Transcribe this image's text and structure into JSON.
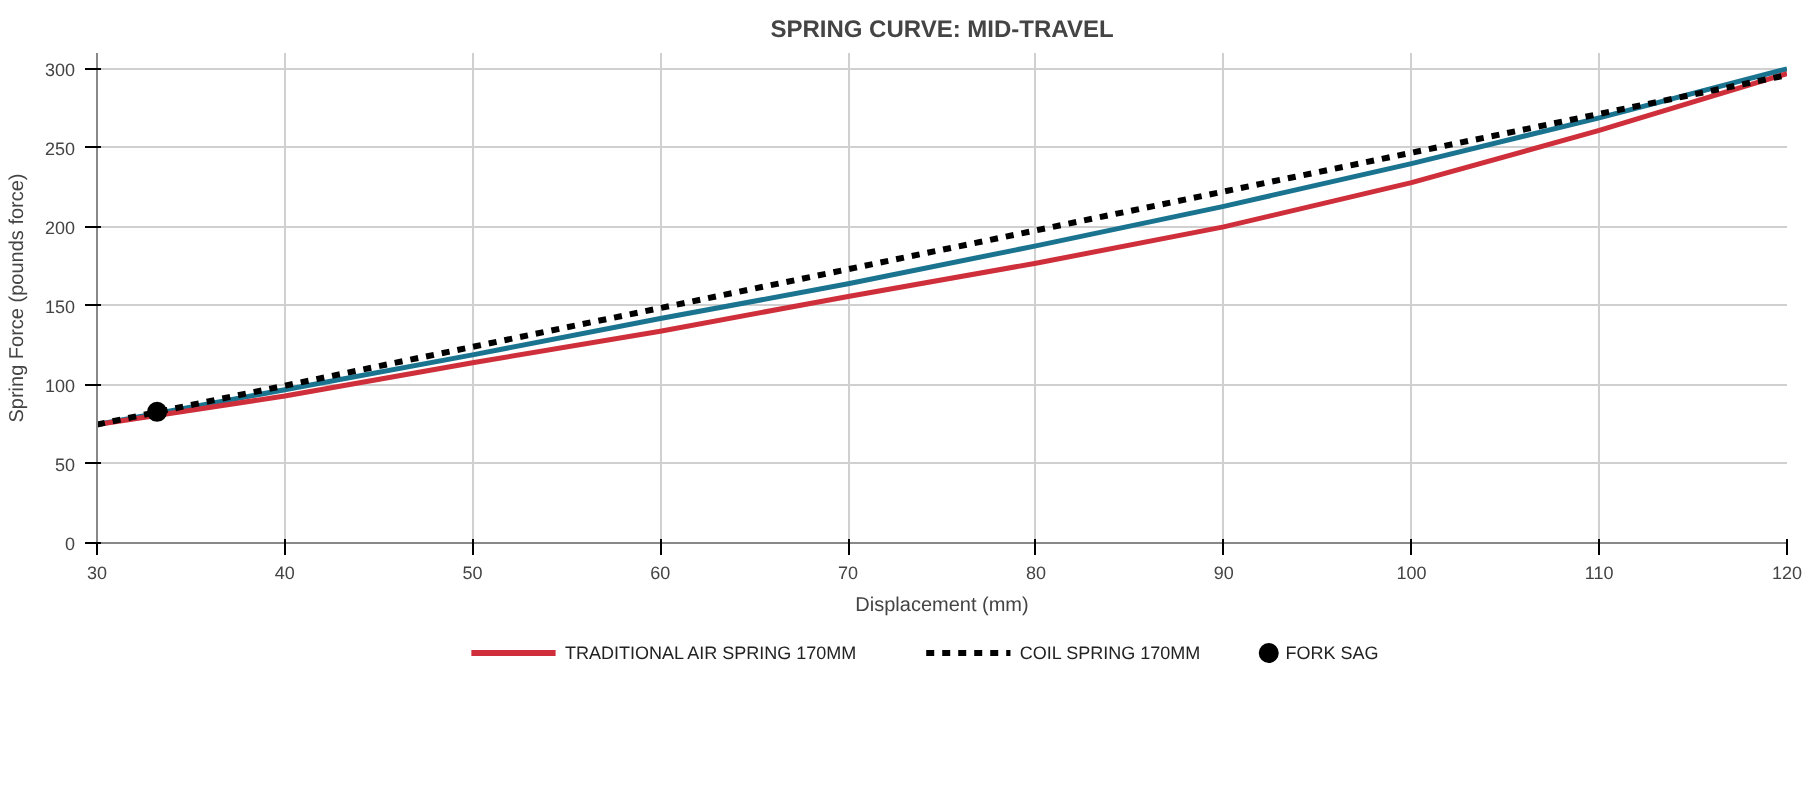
{
  "chart_data": {
    "type": "line",
    "title": "SPRING CURVE: MID-TRAVEL",
    "xlabel": "Displacement (mm)",
    "ylabel": "Spring Force (pounds force)",
    "x": [
      30,
      40,
      50,
      60,
      70,
      80,
      90,
      100,
      110,
      120
    ],
    "series": [
      {
        "color": "#1a7490",
        "values": [
          75,
          97,
          119,
          142,
          164,
          188,
          213,
          240,
          269,
          300
        ]
      },
      {
        "name": "TRADITIONAL AIR SPRING 170MM",
        "color": "#cf2f3a",
        "values": [
          75,
          93,
          114,
          134,
          156,
          177,
          200,
          228,
          261,
          297
        ]
      },
      {
        "name": "COIL SPRING 170MM",
        "color": "#000000",
        "line_style": "dashed",
        "x": [
          30,
          120
        ],
        "values": [
          75,
          296
        ]
      },
      {
        "name": "FORK SAG",
        "type": "scatter",
        "marker": "circle",
        "color": "#000000",
        "x": [
          33.2
        ],
        "values": [
          83
        ]
      }
    ],
    "xlim": [
      30,
      120
    ],
    "ylim": [
      0,
      310
    ],
    "xticks": [
      30,
      40,
      50,
      60,
      70,
      80,
      90,
      100,
      110,
      120
    ],
    "yticks": [
      0,
      50,
      100,
      150,
      200,
      250,
      300
    ],
    "grid": true,
    "legend": "bottom"
  }
}
